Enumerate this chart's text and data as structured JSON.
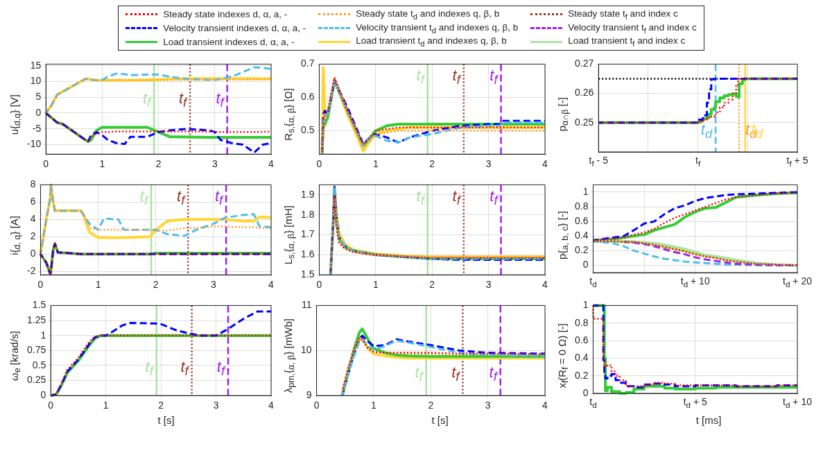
{
  "chart_data": [
    {
      "type": "line",
      "ylabel": "u{$_{d,q}$} [V]",
      "xlim": [
        0,
        4
      ],
      "xticks": [
        0,
        1,
        2,
        3,
        4
      ],
      "ylim": [
        -13,
        15.5
      ],
      "yticks": [
        -10,
        -5,
        0,
        5,
        10,
        15
      ],
      "grid": true,
      "x": [
        0,
        0.1,
        0.2,
        0.3,
        0.5,
        0.7,
        0.75,
        0.8,
        0.9,
        1.0,
        1.1,
        1.25,
        1.4,
        1.5,
        1.8,
        2.0,
        2.2,
        2.5,
        2.9,
        3.0,
        3.1,
        3.3,
        3.5,
        3.7,
        3.85,
        4.0
      ],
      "series": [
        {
          "color": "#ff9933",
          "line_style": "dotted",
          "values": [
            0,
            2.5,
            5.8,
            6.8,
            8.8,
            10.8,
            10.8,
            10.6,
            10.4,
            10.4,
            10.5,
            10.5,
            10.5,
            10.5,
            10.5,
            10.5,
            10.5,
            10.5,
            10.5,
            10.5,
            10.6,
            10.6,
            10.6,
            10.6,
            10.6,
            10.6
          ]
        },
        {
          "color": "#ffd633",
          "line_style": "solid",
          "values": [
            0,
            2.5,
            5.8,
            6.8,
            8.8,
            10.8,
            10.8,
            10.6,
            10.4,
            10.4,
            10.4,
            10.4,
            10.4,
            10.4,
            10.5,
            10.6,
            10.8,
            10.9,
            10.9,
            10.9,
            10.9,
            10.9,
            10.9,
            10.9,
            10.9,
            10.9
          ]
        },
        {
          "color": "#4dbeee",
          "line_style": "dashed",
          "values": [
            0,
            2.5,
            5.8,
            6.8,
            8.8,
            10.8,
            10.8,
            10.6,
            10.4,
            10.5,
            11.5,
            12.5,
            12.3,
            12,
            12.2,
            12.2,
            11.5,
            10.8,
            10.5,
            10.5,
            10.8,
            11.5,
            13,
            14.5,
            14.3,
            14
          ]
        },
        {
          "color": "#33cc33",
          "line_style": "solid",
          "values": [
            0,
            -1.5,
            -3,
            -3.5,
            -6,
            -8.5,
            -9,
            -8.5,
            -5.5,
            -4.5,
            -4.5,
            -4.5,
            -4.5,
            -4.5,
            -4.5,
            -6,
            -7.5,
            -7.6,
            -7.7,
            -7.7,
            -7.7,
            -7.7,
            -7.7,
            -7.7,
            -7.7,
            -7.7
          ]
        },
        {
          "color": "#0000ff",
          "line_style": "dashed",
          "values": [
            0,
            -1.5,
            -3,
            -3.5,
            -6,
            -8.5,
            -9,
            -7,
            -6,
            -7,
            -8.5,
            -9.5,
            -9.8,
            -7.5,
            -7.5,
            -6,
            -5.5,
            -5,
            -5.5,
            -6,
            -8.5,
            -9.5,
            -10,
            -12.5,
            -10,
            -9.5
          ]
        },
        {
          "color": "#ff0000",
          "line_style": "dotted",
          "values": [
            0,
            -1.5,
            -3,
            -3.5,
            -6,
            -8.5,
            -9,
            -7.5,
            -6.5,
            -6,
            -6,
            -5.8,
            -5.8,
            -5.8,
            -5.8,
            -5.8,
            -5.8,
            -5.8,
            -5.8,
            -5.9,
            -6,
            -6,
            -6,
            -6,
            -5.9,
            -5.9
          ]
        }
      ],
      "ref_lines": [
        {
          "axis": "x",
          "value": 1.92,
          "label": "t$_{f}$",
          "color": "#a8e4a0",
          "line_style": "solid"
        },
        {
          "axis": "x",
          "value": 2.56,
          "label": "t$_{f}$",
          "color": "#993322",
          "line_style": "dotted"
        },
        {
          "axis": "x",
          "value": 3.22,
          "label": "t$_{f}$",
          "color": "#a020f0",
          "line_style": "dashed"
        }
      ]
    },
    {
      "type": "line",
      "ylabel": "R$_{s,}${$_{α, β}$} [Ω]",
      "xlim": [
        0,
        4
      ],
      "xticks": [
        0,
        1,
        2,
        3,
        4
      ],
      "ylim": [
        0.43,
        0.7
      ],
      "yticks": [
        0.5,
        0.6,
        0.7
      ],
      "grid": true,
      "x": [
        0.05,
        0.07,
        0.1,
        0.15,
        0.27,
        0.5,
        0.78,
        0.9,
        1.0,
        1.2,
        1.4,
        1.6,
        2.0,
        2.5,
        3.0,
        3.2,
        3.25,
        4.0
      ],
      "series": [
        {
          "color": "#ff9933",
          "line_style": "dotted",
          "values": [
            0.43,
            0.5,
            0.54,
            0.55,
            0.66,
            0.56,
            0.45,
            0.47,
            0.49,
            0.495,
            0.5,
            0.5,
            0.5,
            0.5,
            0.5,
            0.5,
            0.5,
            0.5
          ]
        },
        {
          "color": "#ffd633",
          "line_style": "solid",
          "values": [
            0.43,
            0.69,
            0.55,
            0.55,
            0.65,
            0.55,
            0.44,
            0.47,
            0.49,
            0.5,
            0.505,
            0.51,
            0.51,
            0.51,
            0.51,
            0.51,
            0.51,
            0.51
          ]
        },
        {
          "color": "#33cc33",
          "line_style": "solid",
          "values": [
            0.43,
            0.51,
            0.52,
            0.54,
            0.65,
            0.56,
            0.455,
            0.48,
            0.5,
            0.515,
            0.52,
            0.52,
            0.52,
            0.52,
            0.52,
            0.52,
            0.52,
            0.52
          ]
        },
        {
          "color": "#ff0000",
          "line_style": "dotted",
          "values": [
            0.43,
            0.52,
            0.55,
            0.56,
            0.66,
            0.56,
            0.46,
            0.48,
            0.5,
            0.505,
            0.51,
            0.51,
            0.51,
            0.51,
            0.51,
            0.51,
            0.51,
            0.51
          ]
        },
        {
          "color": "#0000ff",
          "line_style": "dashed",
          "values": [
            0.43,
            0.55,
            0.56,
            0.55,
            0.65,
            0.57,
            0.46,
            0.48,
            0.49,
            0.48,
            0.465,
            0.48,
            0.5,
            0.515,
            0.52,
            0.52,
            0.53,
            0.53
          ]
        },
        {
          "color": "#4dbeee",
          "line_style": "dashed",
          "values": [
            0.43,
            0.53,
            0.55,
            0.55,
            0.65,
            0.56,
            0.455,
            0.48,
            0.485,
            0.47,
            0.465,
            0.48,
            0.49,
            0.51,
            0.515,
            0.515,
            0.525,
            0.525
          ]
        }
      ],
      "ref_lines": [
        {
          "axis": "x",
          "value": 1.92,
          "label": "t$_{f}$",
          "color": "#a8e4a0",
          "line_style": "solid"
        },
        {
          "axis": "x",
          "value": 2.56,
          "label": "t$_{f}$",
          "color": "#993322",
          "line_style": "dotted"
        },
        {
          "axis": "x",
          "value": 3.22,
          "label": "t$_{f}$",
          "color": "#a020f0",
          "line_style": "dashed"
        }
      ]
    },
    {
      "type": "step",
      "ylabel": "p$_{α∩β}$ [-]",
      "xlim": [
        -5,
        5
      ],
      "xticks": [
        {
          "value": -5,
          "label": "t$_{f}$ - 5"
        },
        {
          "value": -2.5,
          "label": null
        },
        {
          "value": 0,
          "label": "t$_{f}$"
        },
        {
          "value": 2.5,
          "label": null
        },
        {
          "value": 5,
          "label": "t$_{f}$ + 5"
        }
      ],
      "ylim": [
        0.24,
        0.27
      ],
      "yticks": [
        0.25,
        0.26,
        0.27
      ],
      "grid": true,
      "x": [
        -5,
        -0.3,
        0,
        0.13,
        0.24,
        0.29,
        0.45,
        0.56,
        0.67,
        0.83,
        0.89,
        1.1,
        1.32,
        1.54,
        1.75,
        1.92,
        2.02,
        2.07,
        2.24,
        2.35,
        2.4,
        5
      ],
      "series": [
        {
          "color": "#33cc33",
          "line_style": "solid",
          "values": [
            0.25,
            0.25,
            0.25,
            0.2502,
            0.2507,
            0.2509,
            0.2514,
            0.252,
            0.2529,
            0.2545,
            0.2552,
            0.2572,
            0.2585,
            0.2592,
            0.2596,
            0.2598,
            0.259,
            0.2587,
            0.2633,
            0.2646,
            0.265,
            0.265
          ]
        },
        {
          "color": "#0000ff",
          "line_style": "dashed",
          "values": [
            0.25,
            0.25,
            0.25,
            0.251,
            0.251,
            0.2525,
            0.2525,
            0.2568,
            0.2614,
            0.2648,
            0.265,
            0.265,
            0.265,
            0.265,
            0.265,
            0.265,
            0.265,
            0.265,
            0.265,
            0.265,
            0.265,
            0.265
          ]
        },
        {
          "color": "#ff0000",
          "line_style": "dotted",
          "values": [
            0.25,
            0.25,
            0.25,
            0.2502,
            0.2504,
            0.2506,
            0.251,
            0.2513,
            0.2516,
            0.252,
            0.2522,
            0.2535,
            0.2552,
            0.2568,
            0.2579,
            0.26,
            0.2625,
            0.265,
            0.265,
            0.265,
            0.265,
            0.265
          ]
        }
      ],
      "ref_lines": [
        {
          "axis": "y",
          "value": 0.265,
          "color": "#000000",
          "line_style": "dotted"
        },
        {
          "axis": "x",
          "value": 0.89,
          "label": "t$_{d}$",
          "color": "#4dbeee",
          "line_style": "dashed"
        },
        {
          "axis": "x",
          "value": 2.07,
          "label": "t$_{d}$",
          "color": "#ff9933",
          "line_style": "dotted"
        },
        {
          "axis": "x",
          "value": 2.38,
          "label": "t$_{d}$",
          "color": "#ffd633",
          "line_style": "solid"
        }
      ]
    },
    {
      "type": "line",
      "ylabel": "i{$_{d, q}$} [A]",
      "xlim": [
        0,
        4
      ],
      "xticks": [
        0,
        1,
        2,
        3,
        4
      ],
      "ylim": [
        -2.4,
        8
      ],
      "yticks": [
        -2,
        0,
        2,
        4,
        6,
        8
      ],
      "grid": true,
      "x": [
        0,
        0.1,
        0.17,
        0.18,
        0.22,
        0.25,
        0.3,
        0.7,
        0.75,
        0.85,
        1.0,
        1.1,
        1.35,
        1.45,
        1.9,
        2.0,
        2.2,
        2.5,
        2.7,
        3.0,
        3.2,
        3.5,
        3.7,
        3.8,
        4.0
      ],
      "series": [
        {
          "color": "#ff9933",
          "line_style": "dotted",
          "values": [
            0,
            4,
            6.5,
            8,
            6,
            5,
            5,
            5,
            4.5,
            3,
            2.8,
            2.8,
            2.8,
            2.8,
            2.8,
            2.7,
            2.7,
            3,
            3,
            3.2,
            3.2,
            3.1,
            3.1,
            3,
            3
          ]
        },
        {
          "color": "#ffd633",
          "line_style": "solid",
          "values": [
            0,
            4,
            6.5,
            8,
            6,
            5,
            5,
            5,
            4.5,
            2.5,
            1.9,
            1.9,
            1.9,
            1.9,
            2.0,
            2.8,
            3.8,
            4,
            4,
            4,
            4,
            3.8,
            3.8,
            4.3,
            4.2
          ]
        },
        {
          "color": "#4dbeee",
          "line_style": "dashed",
          "values": [
            0,
            4,
            6.5,
            8,
            6,
            5,
            5,
            5,
            4.5,
            3.5,
            2.8,
            4.1,
            4.0,
            2.8,
            2.8,
            2.8,
            2.3,
            2.1,
            2.8,
            3.5,
            4.2,
            4.5,
            4.6,
            3.2,
            3.1
          ]
        },
        {
          "color": "#33cc33",
          "line_style": "solid",
          "values": [
            0,
            -1,
            -2.3,
            -2,
            0.5,
            1.2,
            0.2,
            0,
            0,
            0,
            0,
            0,
            0,
            0,
            0,
            0.1,
            0.1,
            0.1,
            0.1,
            0.1,
            0.1,
            0.1,
            0.1,
            0.1,
            0.1
          ]
        },
        {
          "color": "#ff0000",
          "line_style": "dotted",
          "values": [
            0,
            -1,
            -2.3,
            -2,
            0.5,
            1.2,
            0.2,
            0,
            0,
            0,
            0,
            0,
            0,
            0,
            0,
            0,
            0,
            0,
            0,
            0,
            0,
            0,
            0,
            0,
            0
          ]
        },
        {
          "color": "#0000ff",
          "line_style": "dashed",
          "values": [
            0,
            -1,
            -2.3,
            -2,
            0.5,
            1.2,
            0.2,
            0,
            0,
            0,
            0,
            0,
            0,
            0,
            0,
            0,
            0,
            0,
            0,
            0,
            0,
            0,
            0,
            0,
            0
          ]
        }
      ],
      "ref_lines": [
        {
          "axis": "x",
          "value": 1.92,
          "label": "t$_{f}$",
          "color": "#a8e4a0",
          "line_style": "solid"
        },
        {
          "axis": "x",
          "value": 2.56,
          "label": "t$_{f}$",
          "color": "#993322",
          "line_style": "dotted"
        },
        {
          "axis": "x",
          "value": 3.22,
          "label": "t$_{f}$",
          "color": "#a020f0",
          "line_style": "dashed"
        }
      ]
    },
    {
      "type": "line",
      "ylabel": "L$_{s,}${$_{α, β}$} [mH]",
      "xlim": [
        0,
        4
      ],
      "xticks": [
        0,
        1,
        2,
        3,
        4
      ],
      "ylim": [
        1.5,
        1.95
      ],
      "yticks": [
        1.5,
        1.6,
        1.7,
        1.8,
        1.9
      ],
      "grid": true,
      "x": [
        0.2,
        0.25,
        0.27,
        0.3,
        0.35,
        0.45,
        0.6,
        0.8,
        1.0,
        1.5,
        2.0,
        2.5,
        3.0,
        4.0
      ],
      "series": [
        {
          "color": "#ffd633",
          "line_style": "solid",
          "values": [
            null,
            1.8,
            1.94,
            1.82,
            1.71,
            1.655,
            1.625,
            1.615,
            1.605,
            1.595,
            1.59,
            1.59,
            1.59,
            1.59
          ]
        },
        {
          "color": "#ff9933",
          "line_style": "dotted",
          "values": [
            1.5,
            1.72,
            1.88,
            1.76,
            1.67,
            1.635,
            1.615,
            1.605,
            1.6,
            1.595,
            1.59,
            1.59,
            1.59,
            1.59
          ]
        },
        {
          "color": "#33cc33",
          "line_style": "solid",
          "values": [
            1.5,
            1.78,
            1.93,
            1.78,
            1.68,
            1.64,
            1.62,
            1.61,
            1.6,
            1.59,
            1.58,
            1.58,
            1.58,
            1.58
          ]
        },
        {
          "color": "#ff0000",
          "line_style": "dotted",
          "values": [
            1.5,
            1.75,
            1.9,
            1.75,
            1.66,
            1.63,
            1.615,
            1.605,
            1.6,
            1.59,
            1.585,
            1.585,
            1.585,
            1.585
          ]
        },
        {
          "color": "#0000ff",
          "line_style": "dashed",
          "values": [
            1.5,
            1.8,
            1.94,
            1.8,
            1.69,
            1.645,
            1.62,
            1.61,
            1.6,
            1.59,
            1.58,
            1.575,
            1.575,
            1.575
          ]
        },
        {
          "color": "#4dbeee",
          "line_style": "dashed",
          "values": [
            1.5,
            1.8,
            1.94,
            1.8,
            1.69,
            1.645,
            1.62,
            1.61,
            1.6,
            1.59,
            1.58,
            1.58,
            1.58,
            1.58
          ]
        }
      ],
      "ref_lines": [
        {
          "axis": "x",
          "value": 1.92,
          "label": "t$_{f}$",
          "color": "#a8e4a0",
          "line_style": "solid"
        },
        {
          "axis": "x",
          "value": 2.56,
          "label": "t$_{f}$",
          "color": "#993322",
          "line_style": "dotted"
        },
        {
          "axis": "x",
          "value": 3.22,
          "label": "t$_{f}$",
          "color": "#a020f0",
          "line_style": "dashed"
        }
      ]
    },
    {
      "type": "line",
      "ylabel": "p{$_{a, b, c}$} [-]",
      "legend": "top",
      "xlim": [
        0,
        20
      ],
      "xticks": [
        {
          "value": 0,
          "label": "t$_{d}$"
        },
        {
          "value": 5,
          "label": null
        },
        {
          "value": 10,
          "label": "t$_{d}$ + 10"
        },
        {
          "value": 15,
          "label": null
        },
        {
          "value": 20,
          "label": "t$_{d}$ + 20"
        }
      ],
      "ylim": [
        -0.1,
        1.1
      ],
      "yticks": [
        0,
        0.2,
        0.4,
        0.6,
        0.8,
        1
      ],
      "grid": true,
      "x": [
        0,
        2,
        3,
        4,
        5,
        6,
        7,
        8,
        9,
        10,
        11,
        12,
        13,
        14,
        16,
        18,
        20
      ],
      "series": [
        {
          "name": "Steady state indexes d, α, a, -",
          "color": "#ff0000",
          "line_style": "dotted",
          "values": [
            0.34,
            0.36,
            0.38,
            0.42,
            0.45,
            0.5,
            0.58,
            0.65,
            0.7,
            0.75,
            0.8,
            0.85,
            0.9,
            0.93,
            0.96,
            0.98,
            1.0
          ]
        },
        {
          "name": "Velocity transient indexes d, α, a, -",
          "color": "#0000ff",
          "line_style": "dashed",
          "values": [
            0.34,
            0.38,
            0.4,
            0.48,
            0.57,
            0.6,
            0.7,
            0.78,
            0.82,
            0.88,
            0.92,
            0.94,
            0.96,
            0.97,
            0.98,
            0.99,
            1.0
          ]
        },
        {
          "name": "Load transient indexes d, α, a, -",
          "color": "#33cc33",
          "line_style": "solid",
          "values": [
            0.34,
            0.36,
            0.38,
            0.4,
            0.42,
            0.48,
            0.52,
            0.56,
            0.66,
            0.73,
            0.78,
            0.79,
            0.86,
            0.93,
            0.96,
            0.98,
            0.99
          ]
        },
        {
          "name": "Steady state t$_{d}$ and indexes q, β, b",
          "color": "#ff9933",
          "line_style": "dotted",
          "values": [
            0.33,
            0.33,
            0.32,
            0.32,
            0.3,
            0.28,
            0.25,
            0.22,
            0.19,
            0.15,
            0.12,
            0.1,
            0.07,
            0.05,
            0.02,
            0.01,
            0
          ]
        },
        {
          "name": "Velocity transient t$_{d}$ and indexes q, β, b",
          "color": "#4dbeee",
          "line_style": "dashed",
          "values": [
            0.33,
            0.3,
            0.26,
            0.2,
            0.16,
            0.12,
            0.09,
            0.07,
            0.05,
            0.04,
            0.03,
            0.02,
            0.01,
            0.01,
            0,
            0,
            0
          ]
        },
        {
          "name": "Load transient t$_{d}$ and indexes q, β, b",
          "color": "#ffd633",
          "line_style": "solid",
          "values": [
            0.33,
            0.33,
            0.32,
            0.32,
            0.31,
            0.29,
            0.26,
            0.23,
            0.2,
            0.16,
            0.13,
            0.11,
            0.08,
            0.06,
            0.03,
            null,
            null
          ]
        },
        {
          "name": "Steady state t$_{f}$ and index c",
          "color": "#993322",
          "line_style": "dotted",
          "values": [
            0.33,
            0.33,
            0.32,
            0.32,
            0.3,
            0.28,
            0.25,
            0.22,
            0.19,
            0.15,
            0.12,
            0.1,
            0.07,
            0.05,
            0.02,
            0.01,
            0
          ]
        },
        {
          "name": "Velocity transient t$_{f}$ and index c",
          "color": "#a020f0",
          "line_style": "dashed",
          "values": [
            null,
            null,
            0.32,
            0.31,
            0.29,
            0.26,
            0.22,
            0.18,
            0.15,
            0.11,
            0.08,
            0.06,
            0.04,
            0.02,
            0.01,
            0,
            0
          ]
        },
        {
          "name": "Load transient t$_{f}$ and index c",
          "color": "#a8e4a0",
          "line_style": "solid",
          "values": [
            0.33,
            0.33,
            0.33,
            0.32,
            0.31,
            0.3,
            0.28,
            0.25,
            0.22,
            0.18,
            0.14,
            0.12,
            0.1,
            0.07,
            0.03,
            0.01,
            0
          ]
        }
      ]
    },
    {
      "type": "line",
      "ylabel": "ω$_{e}$ [krad/s]",
      "xlabel": "t [s]",
      "xlim": [
        0,
        4
      ],
      "xticks": [
        0,
        1,
        2,
        3,
        4
      ],
      "ylim": [
        0,
        1.5
      ],
      "yticks": [
        0,
        0.25,
        0.5,
        0.75,
        1,
        1.25,
        1.5
      ],
      "grid": true,
      "x": [
        0,
        0.1,
        0.2,
        0.3,
        0.5,
        0.7,
        0.8,
        0.9,
        1.0,
        1.1,
        1.3,
        1.45,
        1.9,
        2.0,
        2.3,
        2.6,
        2.7,
        3.0,
        3.2,
        3.5,
        3.75,
        4.0
      ],
      "series": [
        {
          "color": "#33cc33",
          "line_style": "solid",
          "values": [
            0,
            0.02,
            0.18,
            0.38,
            0.58,
            0.84,
            0.95,
            1,
            1,
            1,
            1,
            1,
            1,
            1,
            1,
            1,
            1,
            1,
            1,
            1,
            1,
            1
          ]
        },
        {
          "color": "#0000ff",
          "line_style": "dashed",
          "values": [
            0,
            0.02,
            0.2,
            0.4,
            0.6,
            0.86,
            0.97,
            1,
            1,
            1.05,
            1.17,
            1.21,
            1.2,
            1.19,
            1.08,
            1.02,
            1,
            1,
            1.1,
            1.28,
            1.4,
            1.4
          ]
        },
        {
          "color": "#ff0000",
          "line_style": "dotted",
          "values": [
            0,
            0.03,
            0.22,
            0.43,
            0.63,
            0.9,
            0.98,
            1,
            1,
            1,
            1,
            1,
            1,
            1,
            1,
            1,
            1,
            1,
            1,
            1,
            1,
            1
          ]
        }
      ],
      "ref_lines": [
        {
          "axis": "x",
          "value": 1.92,
          "label": "t$_{f}$",
          "color": "#a8e4a0",
          "line_style": "solid"
        },
        {
          "axis": "x",
          "value": 2.56,
          "label": "t$_{f}$",
          "color": "#993322",
          "line_style": "dotted"
        },
        {
          "axis": "x",
          "value": 3.22,
          "label": "t$_{f}$",
          "color": "#a020f0",
          "line_style": "dashed"
        }
      ]
    },
    {
      "type": "line",
      "ylabel": "λ$_{pm,}${$_{α, β}$} [mWb]",
      "xlabel": "t [s]",
      "xlim": [
        0,
        4
      ],
      "xticks": [
        0,
        1,
        2,
        3,
        4
      ],
      "ylim": [
        9,
        11
      ],
      "yticks": [
        9,
        10,
        11
      ],
      "grid": true,
      "x": [
        0.45,
        0.55,
        0.65,
        0.75,
        0.8,
        0.9,
        1.0,
        1.2,
        1.4,
        1.6,
        2.0,
        2.5,
        3.0,
        4.0
      ],
      "series": [
        {
          "color": "#ffd633",
          "line_style": "solid",
          "values": [
            9,
            9.5,
            9.95,
            10.3,
            10.3,
            10.05,
            9.93,
            9.88,
            9.85,
            9.83,
            9.83,
            9.83,
            9.83,
            9.83
          ]
        },
        {
          "color": "#33cc33",
          "line_style": "solid",
          "values": [
            9,
            9.5,
            10.0,
            10.4,
            10.48,
            10.25,
            10.05,
            9.95,
            9.9,
            9.88,
            9.87,
            9.87,
            9.87,
            9.87
          ]
        },
        {
          "color": "#ff9933",
          "line_style": "dotted",
          "values": [
            9.1,
            9.6,
            9.98,
            10.25,
            10.2,
            10.05,
            9.97,
            9.95,
            9.93,
            9.93,
            9.93,
            9.92,
            9.92,
            9.92
          ]
        },
        {
          "color": "#ff0000",
          "line_style": "dotted",
          "values": [
            9.1,
            9.6,
            10.0,
            10.28,
            10.25,
            10.05,
            9.97,
            9.95,
            9.95,
            9.95,
            9.95,
            9.93,
            9.93,
            9.92
          ]
        },
        {
          "color": "#0000ff",
          "line_style": "dashed",
          "values": [
            9,
            9.45,
            9.9,
            10.25,
            10.33,
            10.2,
            10.1,
            10.12,
            10.25,
            10.2,
            10.12,
            10.0,
            9.95,
            9.93
          ]
        },
        {
          "color": "#4dbeee",
          "line_style": "dashed",
          "values": [
            9,
            9.45,
            9.85,
            10.2,
            10.25,
            10.1,
            10.02,
            10.1,
            10.22,
            10.18,
            10.08,
            9.95,
            9.9,
            9.88
          ]
        }
      ],
      "ref_lines": [
        {
          "axis": "x",
          "value": 1.92,
          "label": "t$_{f}$",
          "color": "#a8e4a0",
          "line_style": "solid"
        },
        {
          "axis": "x",
          "value": 2.56,
          "label": "t$_{f}$",
          "color": "#993322",
          "line_style": "dotted"
        },
        {
          "axis": "x",
          "value": 3.22,
          "label": "t$_{f}$",
          "color": "#a020f0",
          "line_style": "dashed"
        }
      ]
    },
    {
      "type": "step",
      "ylabel": "x$_{f}$(R$_{f}$ = 0 Ω) [-]",
      "xlabel": "t [ms]",
      "xlim": [
        0,
        10
      ],
      "xticks": [
        {
          "value": 0,
          "label": "t$_{d}$"
        },
        {
          "value": 5,
          "label": "t$_{d}$ + 5"
        },
        {
          "value": 10,
          "label": "t$_{d}$ + 10"
        }
      ],
      "ylim": [
        0,
        1
      ],
      "yticks": [
        0,
        0.2,
        0.4,
        0.6,
        0.8,
        1
      ],
      "grid": true,
      "x": [
        0,
        0.5,
        0.55,
        0.6,
        0.7,
        0.9,
        1.1,
        1.3,
        1.6,
        2.0,
        2.5,
        3.0,
        3.5,
        4.0,
        5,
        6,
        7,
        8,
        9,
        10
      ],
      "series": [
        {
          "color": "#33cc33",
          "line_style": "solid",
          "values": [
            1,
            1,
            1,
            0.4,
            0.03,
            0.07,
            0.02,
            0.02,
            0,
            0.01,
            0.05,
            0.08,
            0.08,
            0.06,
            0.05,
            0.06,
            0.07,
            0.07,
            0.07,
            0.07
          ]
        },
        {
          "color": "#0000ff",
          "line_style": "dashed",
          "values": [
            1,
            1,
            0.38,
            0.2,
            0.17,
            0.2,
            0.22,
            0.15,
            0.12,
            0.08,
            0.07,
            0.1,
            0.11,
            0.1,
            0.08,
            0.09,
            0.09,
            0.08,
            0.08,
            0.09
          ]
        },
        {
          "color": "#ff0000",
          "line_style": "dotted",
          "values": [
            1,
            0.85,
            0.4,
            0.3,
            0.3,
            0.32,
            0.25,
            0.2,
            0.15,
            0.08,
            0.08,
            0.1,
            0.12,
            0.11,
            0.09,
            0.09,
            0.09,
            0.08,
            0.08,
            0.09
          ]
        }
      ]
    }
  ]
}
